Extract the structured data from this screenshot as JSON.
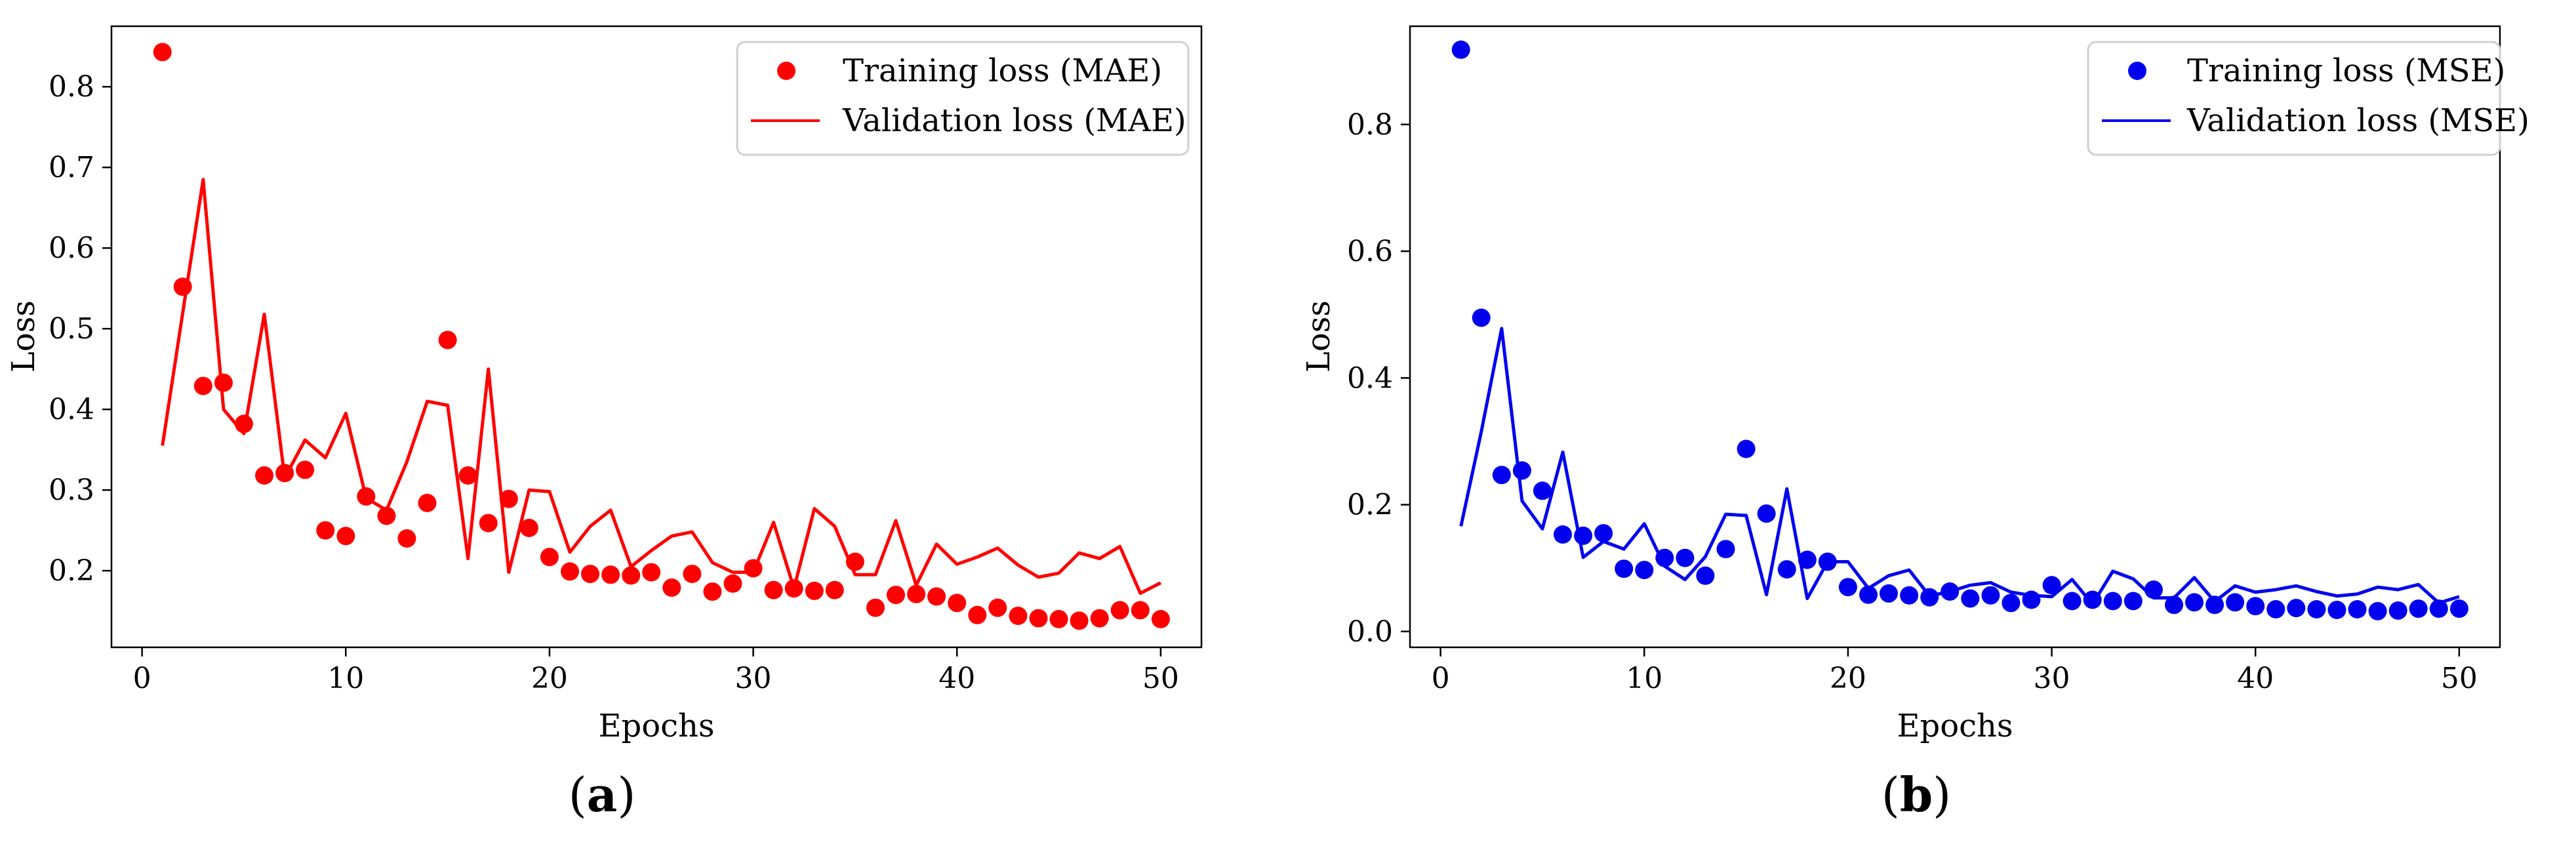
{
  "chart_data": [
    {
      "type": "line",
      "caption": "(a)",
      "caption_letter": "a",
      "xlabel": "Epochs",
      "ylabel": "Loss",
      "xlim": [
        -1.5,
        52
      ],
      "ylim": [
        0.105,
        0.875
      ],
      "xticks": [
        0,
        10,
        20,
        30,
        40,
        50
      ],
      "yticks": [
        0.2,
        0.3,
        0.4,
        0.5,
        0.6,
        0.7,
        0.8
      ],
      "xtick_labels": [
        "0",
        "10",
        "20",
        "30",
        "40",
        "50"
      ],
      "ytick_labels": [
        "0.2",
        "0.3",
        "0.4",
        "0.5",
        "0.6",
        "0.7",
        "0.8"
      ],
      "legend_position": "top-right",
      "color": "#ff0000",
      "series": [
        {
          "name": "Training loss (MAE)",
          "style": "scatter",
          "x": [
            1,
            2,
            3,
            4,
            5,
            6,
            7,
            8,
            9,
            10,
            11,
            12,
            13,
            14,
            15,
            16,
            17,
            18,
            19,
            20,
            21,
            22,
            23,
            24,
            25,
            26,
            27,
            28,
            29,
            30,
            31,
            32,
            33,
            34,
            35,
            36,
            37,
            38,
            39,
            40,
            41,
            42,
            43,
            44,
            45,
            46,
            47,
            48,
            49,
            50
          ],
          "values": [
            0.843,
            0.552,
            0.429,
            0.433,
            0.382,
            0.318,
            0.321,
            0.325,
            0.25,
            0.243,
            0.292,
            0.268,
            0.24,
            0.284,
            0.486,
            0.318,
            0.259,
            0.289,
            0.253,
            0.217,
            0.199,
            0.196,
            0.195,
            0.194,
            0.198,
            0.179,
            0.196,
            0.174,
            0.184,
            0.203,
            0.176,
            0.178,
            0.175,
            0.176,
            0.211,
            0.154,
            0.17,
            0.171,
            0.168,
            0.16,
            0.145,
            0.154,
            0.144,
            0.141,
            0.14,
            0.138,
            0.141,
            0.151,
            0.151,
            0.14
          ]
        },
        {
          "name": "Validation loss (MAE)",
          "style": "line",
          "x": [
            1,
            2,
            3,
            4,
            5,
            6,
            7,
            8,
            9,
            10,
            11,
            12,
            13,
            14,
            15,
            16,
            17,
            18,
            19,
            20,
            21,
            22,
            23,
            24,
            25,
            26,
            27,
            28,
            29,
            30,
            31,
            32,
            33,
            34,
            35,
            36,
            37,
            38,
            39,
            40,
            41,
            42,
            43,
            44,
            45,
            46,
            47,
            48,
            49,
            50
          ],
          "values": [
            0.355,
            0.52,
            0.685,
            0.4,
            0.37,
            0.518,
            0.315,
            0.362,
            0.34,
            0.395,
            0.29,
            0.275,
            0.335,
            0.41,
            0.405,
            0.215,
            0.45,
            0.198,
            0.3,
            0.298,
            0.223,
            0.255,
            0.275,
            0.205,
            0.225,
            0.243,
            0.248,
            0.21,
            0.198,
            0.198,
            0.26,
            0.178,
            0.277,
            0.255,
            0.195,
            0.195,
            0.262,
            0.182,
            0.233,
            0.208,
            0.217,
            0.228,
            0.207,
            0.192,
            0.197,
            0.222,
            0.215,
            0.23,
            0.172,
            0.185
          ]
        }
      ]
    },
    {
      "type": "line",
      "caption": "(b)",
      "caption_letter": "b",
      "xlabel": "Epochs",
      "ylabel": "Loss",
      "xlim": [
        -1.5,
        52
      ],
      "ylim": [
        -0.025,
        0.955
      ],
      "xticks": [
        0,
        10,
        20,
        30,
        40,
        50
      ],
      "yticks": [
        0.0,
        0.2,
        0.4,
        0.6,
        0.8
      ],
      "xtick_labels": [
        "0",
        "10",
        "20",
        "30",
        "40",
        "50"
      ],
      "ytick_labels": [
        "0.0",
        "0.2",
        "0.4",
        "0.6",
        "0.8"
      ],
      "legend_position": "top-right",
      "color": "#0000ee",
      "series": [
        {
          "name": "Training loss (MSE)",
          "style": "scatter",
          "x": [
            1,
            2,
            3,
            4,
            5,
            6,
            7,
            8,
            9,
            10,
            11,
            12,
            13,
            14,
            15,
            16,
            17,
            18,
            19,
            20,
            21,
            22,
            23,
            24,
            25,
            26,
            27,
            28,
            29,
            30,
            31,
            32,
            33,
            34,
            35,
            36,
            37,
            38,
            39,
            40,
            41,
            42,
            43,
            44,
            45,
            46,
            47,
            48,
            49,
            50
          ],
          "values": [
            0.918,
            0.495,
            0.247,
            0.254,
            0.222,
            0.153,
            0.151,
            0.155,
            0.099,
            0.097,
            0.116,
            0.116,
            0.088,
            0.13,
            0.288,
            0.186,
            0.098,
            0.113,
            0.11,
            0.07,
            0.058,
            0.06,
            0.057,
            0.054,
            0.063,
            0.052,
            0.057,
            0.045,
            0.05,
            0.073,
            0.048,
            0.05,
            0.048,
            0.048,
            0.066,
            0.042,
            0.046,
            0.042,
            0.046,
            0.04,
            0.035,
            0.037,
            0.035,
            0.034,
            0.035,
            0.032,
            0.033,
            0.036,
            0.036,
            0.036
          ]
        },
        {
          "name": "Validation loss (MSE)",
          "style": "line",
          "x": [
            1,
            2,
            3,
            4,
            5,
            6,
            7,
            8,
            9,
            10,
            11,
            12,
            13,
            14,
            15,
            16,
            17,
            18,
            19,
            20,
            21,
            22,
            23,
            24,
            25,
            26,
            27,
            28,
            29,
            30,
            31,
            32,
            33,
            34,
            35,
            36,
            37,
            38,
            39,
            40,
            41,
            42,
            43,
            44,
            45,
            46,
            47,
            48,
            49,
            50
          ],
          "values": [
            0.166,
            0.315,
            0.478,
            0.206,
            0.162,
            0.283,
            0.117,
            0.142,
            0.13,
            0.17,
            0.103,
            0.082,
            0.118,
            0.185,
            0.183,
            0.058,
            0.225,
            0.052,
            0.11,
            0.11,
            0.068,
            0.088,
            0.097,
            0.056,
            0.063,
            0.073,
            0.077,
            0.062,
            0.057,
            0.055,
            0.082,
            0.043,
            0.095,
            0.083,
            0.053,
            0.053,
            0.085,
            0.047,
            0.072,
            0.062,
            0.066,
            0.072,
            0.063,
            0.056,
            0.059,
            0.07,
            0.066,
            0.074,
            0.045,
            0.055
          ]
        }
      ]
    }
  ]
}
